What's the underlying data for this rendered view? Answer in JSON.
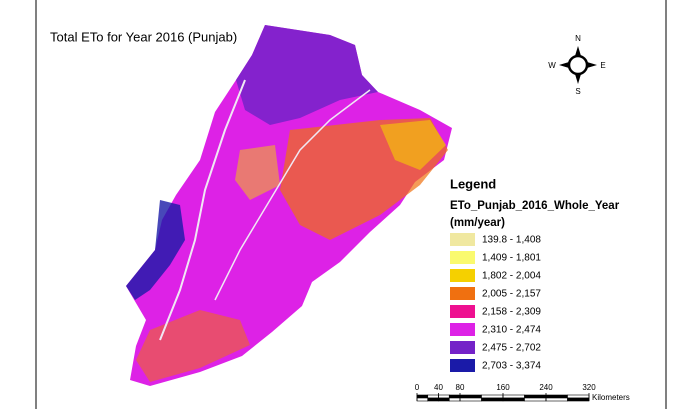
{
  "title": "Total ETo for Year 2016 (Punjab)",
  "compass": {
    "north": "N",
    "south": "S",
    "east": "E",
    "west": "W"
  },
  "legend": {
    "heading": "Legend",
    "layer": "ETo_Punjab_2016_Whole_Year",
    "units": "(mm/year)",
    "items": [
      {
        "label": "139.8 - 1,408",
        "color": "#f0e8a0"
      },
      {
        "label": "1,409 - 1,801",
        "color": "#fafa6e"
      },
      {
        "label": "1,802 - 2,004",
        "color": "#f5d000"
      },
      {
        "label": "2,005 - 2,157",
        "color": "#f07010"
      },
      {
        "label": "2,158 - 2,309",
        "color": "#ee1090"
      },
      {
        "label": "2,310 - 2,474",
        "color": "#dd22e6"
      },
      {
        "label": "2,475 - 2,702",
        "color": "#7422c8"
      },
      {
        "label": "2,703 - 3,374",
        "color": "#1a1aa8"
      }
    ]
  },
  "scale_bar": {
    "ticks": [
      0,
      40,
      80,
      160,
      240,
      320
    ],
    "units": "Kilometers"
  }
}
